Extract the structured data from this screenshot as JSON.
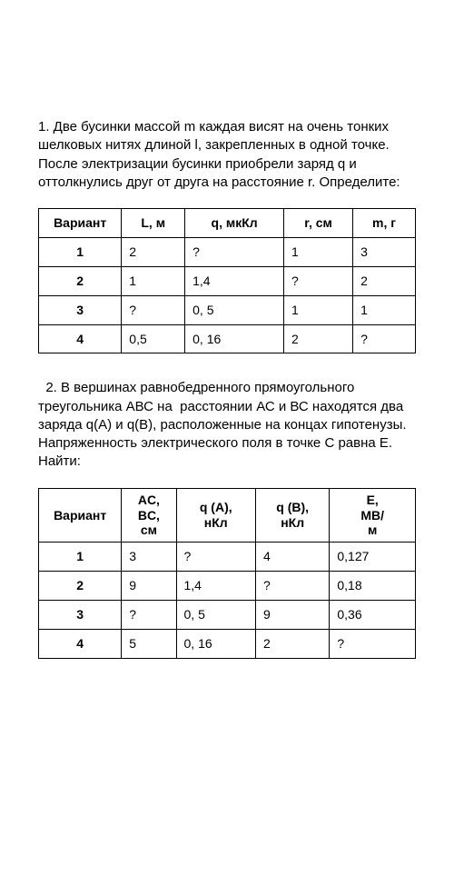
{
  "problem1": {
    "text": "1. Две бусинки массой m каждая висят на очень тонких шелковых нитях длиной l, закрепленных в одной точке. После электризации бусинки приобрели заряд q и оттолкнулись друг от друга на расстояние r. Определите:",
    "table": {
      "headers": [
        "Вариант",
        "L, м",
        "q, мкКл",
        "r, см",
        "m, г"
      ],
      "rows": [
        [
          "1",
          "2",
          "?",
          "1",
          "3"
        ],
        [
          "2",
          "1",
          "1,4",
          "?",
          "2"
        ],
        [
          "3",
          "?",
          "0, 5",
          "1",
          "1"
        ],
        [
          "4",
          "0,5",
          "0, 16",
          "2",
          "?"
        ]
      ]
    }
  },
  "problem2": {
    "text": "  2. В вершинах равнобедренного прямоугольного треугольника АВС на  расстоянии АС и ВС находятся два заряда q(А) и q(В), расположенные на концах гипотенузы. Напряженность электрического поля в точке С равна Е. Найти:",
    "table": {
      "headers": [
        "Вариант",
        "AC, BC, см",
        "q (A), нКл",
        "q (B), нКл",
        "E, МВ/м"
      ],
      "rows": [
        [
          "1",
          "3",
          "?",
          "4",
          "0,127"
        ],
        [
          "2",
          "9",
          "1,4",
          "?",
          "0,18"
        ],
        [
          "3",
          "?",
          "0, 5",
          "9",
          "0,36"
        ],
        [
          "4",
          "5",
          "0, 16",
          "2",
          "?"
        ]
      ]
    }
  }
}
